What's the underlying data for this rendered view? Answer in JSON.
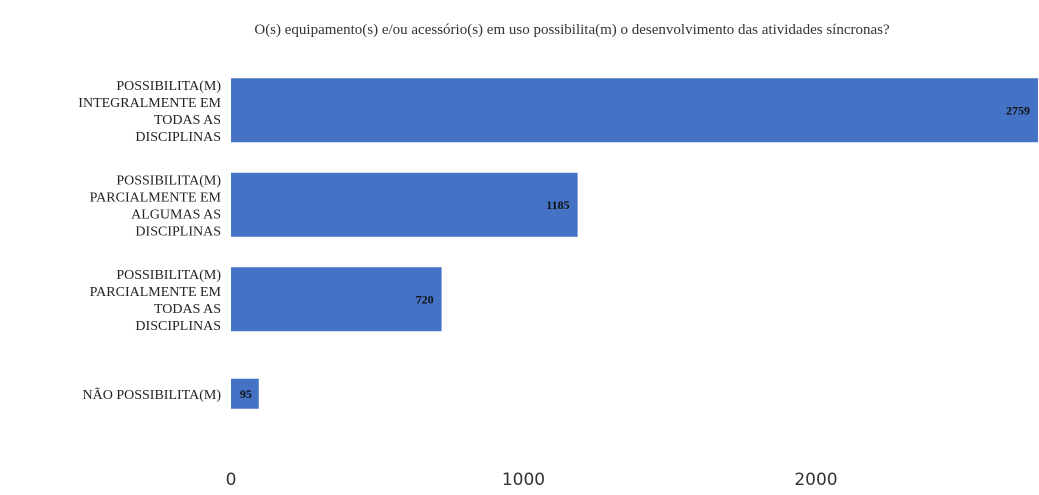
{
  "chart_data": {
    "type": "bar",
    "orientation": "horizontal",
    "title": "O(s) equipamento(s) e/ou acessório(s) em uso possibilita(m) o desenvolvimento das atividades síncronas?",
    "categories": [
      [
        "POSSIBILITA(M)",
        "INTEGRALMENTE EM",
        "TODAS AS",
        "DISCIPLINAS"
      ],
      [
        "POSSIBILITA(M)",
        "PARCIALMENTE EM",
        "ALGUMAS AS",
        "DISCIPLINAS"
      ],
      [
        "POSSIBILITA(M)",
        "PARCIALMENTE EM",
        "TODAS AS",
        "DISCIPLINAS"
      ],
      [
        "NÃO POSSIBILITA(M)"
      ]
    ],
    "values": [
      2759,
      1185,
      720,
      95
    ],
    "data_labels": [
      "2759",
      "1185",
      "720",
      "95"
    ],
    "xlim": [
      0,
      2759
    ],
    "xticks": [
      0,
      1000,
      2000
    ],
    "xtick_labels": [
      "0",
      "1000",
      "2000"
    ],
    "xlabel": "",
    "ylabel": "",
    "grid": false,
    "legend": "none",
    "bar_color": "#4472c4"
  }
}
